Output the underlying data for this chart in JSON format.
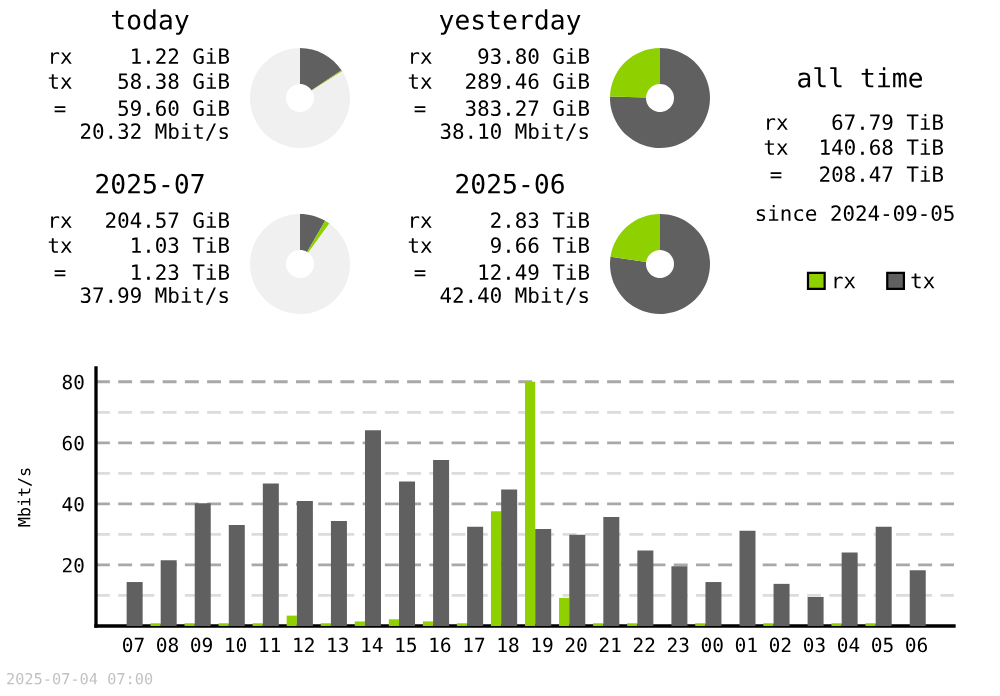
{
  "chart_data": [
    {
      "type": "donut",
      "title": "today",
      "categories": [
        null,
        null,
        null
      ],
      "values": [
        15.6,
        0.4,
        84.0
      ],
      "colors": [
        "#606060",
        "#8fd000",
        "#f0f0f0"
      ],
      "annotations": [
        "rx",
        "1.22 GiB",
        "tx",
        "58.38 GiB",
        "=",
        "59.60 GiB",
        "20.32 Mbit/s"
      ]
    },
    {
      "type": "donut",
      "title": "yesterday",
      "categories": [
        null,
        null,
        null
      ],
      "values": [
        75.5,
        24.5,
        0
      ],
      "colors": [
        "#606060",
        "#8fd000",
        "#f0f0f0"
      ],
      "annotations": [
        "rx",
        "93.80 GiB",
        "tx",
        "289.46 GiB",
        "=",
        "383.27 GiB",
        "38.10 Mbit/s"
      ]
    },
    {
      "type": "other",
      "title": "all time",
      "annotations": [
        "rx",
        "67.79 TiB",
        "tx",
        "140.68 TiB",
        "=",
        "208.47 TiB",
        "since 2024-09-05"
      ]
    },
    {
      "type": "donut",
      "title": "2025-07",
      "categories": [
        null,
        null,
        null
      ],
      "values": [
        8.4,
        1.6,
        90.0
      ],
      "colors": [
        "#606060",
        "#8fd000",
        "#f0f0f0"
      ],
      "annotations": [
        "rx",
        "204.57 GiB",
        "tx",
        "1.03 TiB",
        "=",
        "1.23 TiB",
        "37.99 Mbit/s"
      ]
    },
    {
      "type": "donut",
      "title": "2025-06",
      "categories": [
        null,
        null,
        null
      ],
      "values": [
        77.3,
        22.7,
        0
      ],
      "colors": [
        "#606060",
        "#8fd000",
        "#f0f0f0"
      ],
      "annotations": [
        "rx",
        "2.83 TiB",
        "tx",
        "9.66 TiB",
        "=",
        "12.49 TiB",
        "42.40 Mbit/s"
      ]
    },
    {
      "type": "bar",
      "ylabel": "Mbit/s",
      "legend": "top right",
      "grid": "y",
      "categories": [
        "07",
        "08",
        "09",
        "10",
        "11",
        "12",
        "13",
        "14",
        "15",
        "16",
        "17",
        "18",
        "19",
        "20",
        "21",
        "22",
        "23",
        "00",
        "01",
        "02",
        "03",
        "04",
        "05",
        "06"
      ],
      "series": [
        {
          "name": "rx",
          "color": "#8fd000",
          "values": [
            0,
            0.9,
            0.9,
            0.9,
            0.9,
            3.4,
            0.9,
            1.5,
            2.2,
            1.5,
            0.9,
            37.6,
            80,
            9.2,
            0.9,
            0.9,
            0,
            0.9,
            0,
            0.9,
            0,
            0.9,
            0.9,
            0
          ]
        },
        {
          "name": "tx",
          "color": "#606060",
          "values": [
            14.4,
            21.5,
            40.2,
            33.1,
            46.7,
            40.9,
            34.4,
            64.1,
            47.3,
            54.4,
            32.5,
            44.7,
            31.8,
            29.9,
            35.7,
            24.7,
            19.6,
            14.4,
            31.2,
            13.8,
            9.5,
            24.1,
            32.5,
            18.3
          ]
        }
      ],
      "ylim": [
        0,
        84.5
      ],
      "yticks": [
        {
          "value": 10,
          "label": null
        },
        20,
        {
          "value": 30,
          "label": null
        },
        40,
        {
          "value": 50,
          "label": null
        },
        60,
        {
          "value": 70,
          "label": null
        },
        80
      ],
      "annotations": [
        "2025-07-04 07:00"
      ]
    }
  ]
}
